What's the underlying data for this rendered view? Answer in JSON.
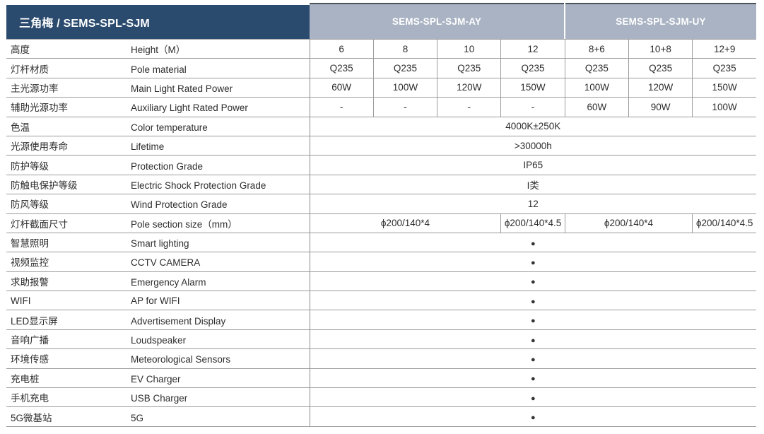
{
  "colors": {
    "header_navy": "#2a4a6e",
    "header_gray_blue": "#a9b3c3",
    "header_top_border": "#4d525b",
    "grid_line": "#9b9b9b",
    "text": "#2d2d2d",
    "header_text": "#ffffff"
  },
  "header": {
    "title": "三角梅 / SEMS-SPL-SJM",
    "groups": [
      {
        "label": "SEMS-SPL-SJM-AY",
        "span": 4
      },
      {
        "label": "SEMS-SPL-SJM-UY",
        "span": 3
      }
    ]
  },
  "table": {
    "bullet_glyph": "●",
    "rows": [
      {
        "zh": "高度",
        "en": "Height（M）",
        "cells": [
          {
            "text": "6",
            "span": 1
          },
          {
            "text": "8",
            "span": 1
          },
          {
            "text": "10",
            "span": 1
          },
          {
            "text": "12",
            "span": 1
          },
          {
            "text": "8+6",
            "span": 1
          },
          {
            "text": "10+8",
            "span": 1
          },
          {
            "text": "12+9",
            "span": 1
          }
        ]
      },
      {
        "zh": "灯杆材质",
        "en": "Pole material",
        "cells": [
          {
            "text": "Q235",
            "span": 1
          },
          {
            "text": "Q235",
            "span": 1
          },
          {
            "text": "Q235",
            "span": 1
          },
          {
            "text": "Q235",
            "span": 1
          },
          {
            "text": "Q235",
            "span": 1
          },
          {
            "text": "Q235",
            "span": 1
          },
          {
            "text": "Q235",
            "span": 1
          }
        ]
      },
      {
        "zh": "主光源功率",
        "en": "Main Light Rated Power",
        "cells": [
          {
            "text": "60W",
            "span": 1
          },
          {
            "text": "100W",
            "span": 1
          },
          {
            "text": "120W",
            "span": 1
          },
          {
            "text": "150W",
            "span": 1
          },
          {
            "text": "100W",
            "span": 1
          },
          {
            "text": "120W",
            "span": 1
          },
          {
            "text": "150W",
            "span": 1
          }
        ]
      },
      {
        "zh": "辅助光源功率",
        "en": "Auxiliary Light Rated Power",
        "cells": [
          {
            "text": "-",
            "span": 1
          },
          {
            "text": "-",
            "span": 1
          },
          {
            "text": "-",
            "span": 1
          },
          {
            "text": "-",
            "span": 1
          },
          {
            "text": "60W",
            "span": 1
          },
          {
            "text": "90W",
            "span": 1
          },
          {
            "text": "100W",
            "span": 1
          }
        ]
      },
      {
        "zh": "色温",
        "en": "Color temperature",
        "cells": [
          {
            "text": "4000K±250K",
            "span": 7
          }
        ]
      },
      {
        "zh": "光源使用寿命",
        "en": "Lifetime",
        "cells": [
          {
            "text": ">30000h",
            "span": 7
          }
        ]
      },
      {
        "zh": "防护等级",
        "en": "Protection Grade",
        "cells": [
          {
            "text": "IP65",
            "span": 7
          }
        ]
      },
      {
        "zh": "防触电保护等级",
        "en": "Electric Shock Protection Grade",
        "cells": [
          {
            "text": "I类",
            "span": 7
          }
        ]
      },
      {
        "zh": "防风等级",
        "en": "Wind Protection Grade",
        "cells": [
          {
            "text": "12",
            "span": 7
          }
        ]
      },
      {
        "zh": "灯杆截面尺寸",
        "en": "Pole section size（mm）",
        "cells": [
          {
            "text": "ϕ200/140*4",
            "span": 3
          },
          {
            "text": "ϕ200/140*4.5",
            "span": 1
          },
          {
            "text": "ϕ200/140*4",
            "span": 2
          },
          {
            "text": "ϕ200/140*4.5",
            "span": 1
          }
        ]
      },
      {
        "zh": "智慧照明",
        "en": "Smart lighting",
        "cells": [
          {
            "text": "●",
            "span": 7,
            "dot": true
          }
        ]
      },
      {
        "zh": "视频监控",
        "en": "CCTV CAMERA",
        "cells": [
          {
            "text": "●",
            "span": 7,
            "dot": true
          }
        ]
      },
      {
        "zh": "求助报警",
        "en": "Emergency Alarm",
        "cells": [
          {
            "text": "●",
            "span": 7,
            "dot": true
          }
        ]
      },
      {
        "zh": "WIFI",
        "en": "AP for WIFI",
        "cells": [
          {
            "text": "●",
            "span": 7,
            "dot": true
          }
        ]
      },
      {
        "zh": "LED显示屏",
        "en": "Advertisement Display",
        "cells": [
          {
            "text": "●",
            "span": 7,
            "dot": true
          }
        ]
      },
      {
        "zh": "音响广播",
        "en": "Loudspeaker",
        "cells": [
          {
            "text": "●",
            "span": 7,
            "dot": true
          }
        ]
      },
      {
        "zh": "环境传感",
        "en": "Meteorological Sensors",
        "cells": [
          {
            "text": "●",
            "span": 7,
            "dot": true
          }
        ]
      },
      {
        "zh": "充电桩",
        "en": "EV Charger",
        "cells": [
          {
            "text": "●",
            "span": 7,
            "dot": true
          }
        ]
      },
      {
        "zh": "手机充电",
        "en": "USB Charger",
        "cells": [
          {
            "text": "●",
            "span": 7,
            "dot": true
          }
        ]
      },
      {
        "zh": "5G微基站",
        "en": "5G",
        "cells": [
          {
            "text": "●",
            "span": 7,
            "dot": true
          }
        ]
      }
    ]
  }
}
